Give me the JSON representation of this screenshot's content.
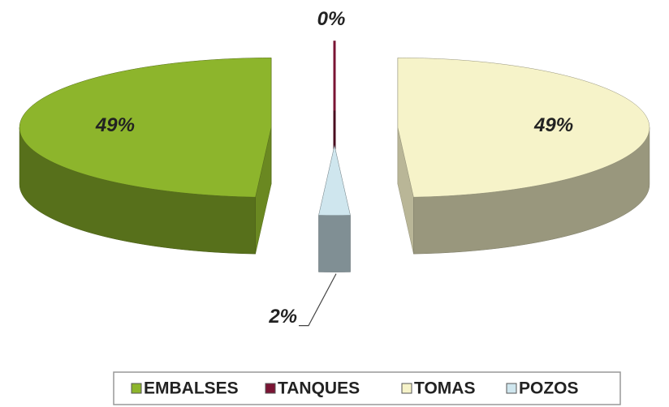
{
  "chart_data": {
    "type": "pie",
    "categories": [
      "EMBALSES",
      "TANQUES",
      "TOMAS",
      "POZOS"
    ],
    "values": [
      49,
      0,
      49,
      2
    ],
    "value_labels": [
      "49%",
      "0%",
      "49%",
      "2%"
    ],
    "colors": [
      "#8db52c",
      "#7a1434",
      "#f6f3c9",
      "#cfe6ee"
    ]
  }
}
